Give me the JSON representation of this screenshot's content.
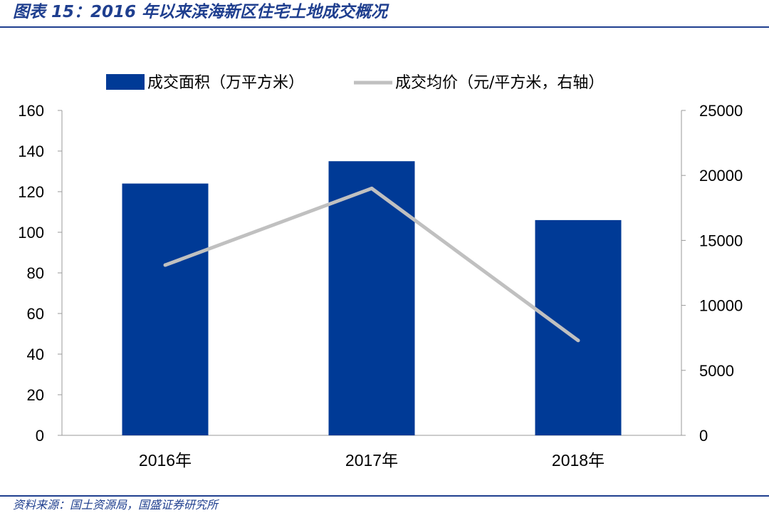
{
  "title": "图表 15：2016 年以来滨海新区住宅土地成交概况",
  "source": "资料来源：国土资源局，国盛证券研究所",
  "colors": {
    "bar": "#003a96",
    "line": "#c0c0c0",
    "accent": "#1f3f8f"
  },
  "chart_data": {
    "type": "bar",
    "categories": [
      "2016年",
      "2017年",
      "2018年"
    ],
    "series": [
      {
        "name": "成交面积（万平方米）",
        "type": "bar",
        "axis": "left",
        "values": [
          124,
          135,
          106
        ]
      },
      {
        "name": "成交均价（元/平方米，右轴）",
        "type": "line",
        "axis": "right",
        "values": [
          13100,
          19000,
          7300
        ]
      }
    ],
    "ylim_left": [
      0,
      160
    ],
    "yticks_left": [
      "0",
      "20",
      "40",
      "60",
      "80",
      "100",
      "120",
      "140",
      "160"
    ],
    "ylim_right": [
      0,
      25000
    ],
    "yticks_right": [
      "0",
      "5000",
      "10000",
      "15000",
      "20000",
      "25000"
    ],
    "legend": "top",
    "grid": false
  }
}
